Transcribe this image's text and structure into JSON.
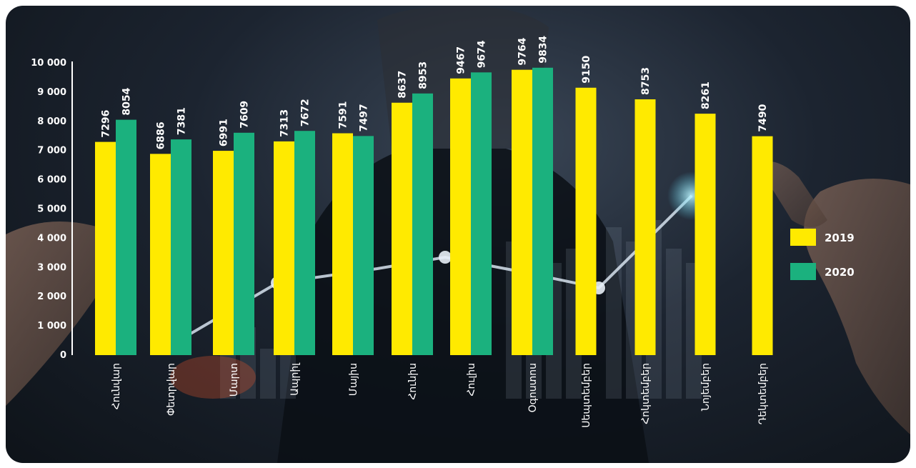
{
  "chart_data": {
    "type": "bar",
    "categories": [
      "Հունվար",
      "Փետրվար",
      "Մարտ",
      "Ապրիլ",
      "Մայիս",
      "Հունիս",
      "Հուլիս",
      "Օգոստոս",
      "Սեպտեմբեր",
      "Հոկտեմբեր",
      "Նոյեմբեր",
      "Դեկտեմբեր"
    ],
    "series": [
      {
        "name": "2019",
        "color": "#ffea00",
        "values": [
          7296,
          6886,
          6991,
          7313,
          7591,
          8637,
          9467,
          9764,
          9150,
          8753,
          8261,
          7490
        ]
      },
      {
        "name": "2020",
        "color": "#1bb17e",
        "values": [
          8054,
          7381,
          7609,
          7672,
          7497,
          8953,
          9674,
          9834,
          null,
          null,
          null,
          null
        ]
      }
    ],
    "yticks": [
      "0",
      "1 000",
      "2 000",
      "3 000",
      "4 000",
      "5 000",
      "6 000",
      "7 000",
      "8 000",
      "9 000",
      "10 000"
    ],
    "ylim": [
      0,
      10000
    ],
    "legend_position": "right",
    "title": "",
    "xlabel": "",
    "ylabel": ""
  }
}
